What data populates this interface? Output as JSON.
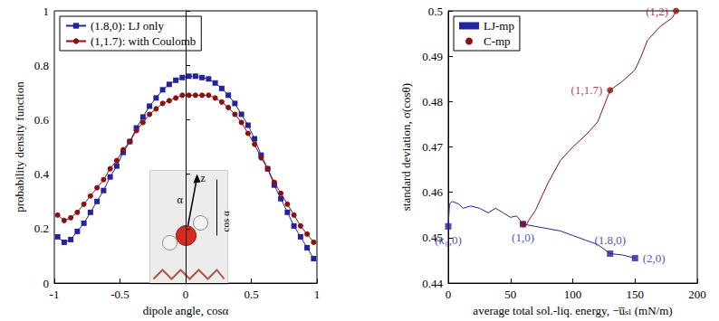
{
  "chart_data": [
    {
      "type": "line",
      "xlabel": "dipole angle, cosα",
      "ylabel": "probability density function",
      "xlim": [
        -1,
        1
      ],
      "xticks": [
        -1,
        -0.5,
        0,
        0.5,
        1
      ],
      "ylim": [
        0,
        1
      ],
      "yticks": [
        0,
        0.2,
        0.4,
        0.6,
        0.8,
        1
      ],
      "grid": false,
      "legend": "upper left",
      "annotations": [
        "z",
        "α",
        "cos α"
      ],
      "x": [
        -0.975,
        -0.925,
        -0.875,
        -0.825,
        -0.775,
        -0.725,
        -0.675,
        -0.625,
        -0.575,
        -0.525,
        -0.475,
        -0.425,
        -0.375,
        -0.325,
        -0.275,
        -0.225,
        -0.175,
        -0.125,
        -0.075,
        -0.025,
        0.025,
        0.075,
        0.125,
        0.175,
        0.225,
        0.275,
        0.325,
        0.375,
        0.425,
        0.475,
        0.525,
        0.575,
        0.625,
        0.675,
        0.725,
        0.775,
        0.825,
        0.875,
        0.925,
        0.975
      ],
      "series": [
        {
          "name": "(1.8,0): LJ only",
          "color": "#23239b",
          "marker": "square",
          "values": [
            0.17,
            0.15,
            0.16,
            0.19,
            0.22,
            0.26,
            0.3,
            0.34,
            0.39,
            0.43,
            0.48,
            0.52,
            0.57,
            0.61,
            0.65,
            0.68,
            0.71,
            0.73,
            0.745,
            0.755,
            0.76,
            0.76,
            0.755,
            0.75,
            0.735,
            0.715,
            0.69,
            0.66,
            0.62,
            0.58,
            0.53,
            0.47,
            0.42,
            0.36,
            0.31,
            0.26,
            0.21,
            0.17,
            0.13,
            0.09
          ]
        },
        {
          "name": "(1,1.7): with Coulomb",
          "color": "#8b1010",
          "marker": "circle",
          "values": [
            0.25,
            0.23,
            0.24,
            0.26,
            0.29,
            0.32,
            0.35,
            0.38,
            0.42,
            0.45,
            0.49,
            0.52,
            0.56,
            0.59,
            0.62,
            0.64,
            0.66,
            0.67,
            0.68,
            0.69,
            0.69,
            0.69,
            0.69,
            0.69,
            0.68,
            0.665,
            0.645,
            0.62,
            0.59,
            0.55,
            0.51,
            0.46,
            0.42,
            0.37,
            0.33,
            0.29,
            0.25,
            0.21,
            0.18,
            0.15
          ]
        }
      ]
    },
    {
      "type": "line",
      "xlabel": "average total sol.-liq. energy, −u̅ₛₗ (mN/m)",
      "ylabel": "standard deviation, σ(cosθ)",
      "xlim": [
        0,
        200
      ],
      "xticks": [
        0,
        50,
        100,
        150,
        200
      ],
      "ylim": [
        0.44,
        0.5
      ],
      "yticks": [
        0.44,
        0.45,
        0.46,
        0.47,
        0.48,
        0.49,
        0.5
      ],
      "grid": false,
      "legend": "upper left",
      "series": [
        {
          "name": "LJ-mp",
          "color": "#23239b",
          "marker": "square",
          "x": [
            0,
            1,
            3,
            8,
            12,
            18,
            25,
            32,
            38,
            44,
            50,
            55,
            60,
            70,
            80,
            90,
            100,
            110,
            120,
            130,
            140,
            150
          ],
          "values": [
            0.4525,
            0.4575,
            0.458,
            0.4575,
            0.4565,
            0.457,
            0.4565,
            0.4555,
            0.4565,
            0.4555,
            0.4545,
            0.4548,
            0.453,
            0.4525,
            0.452,
            0.4515,
            0.4505,
            0.4495,
            0.4485,
            0.4465,
            0.4462,
            0.4455
          ],
          "points": [
            {
              "x": 0,
              "y": 0.4525,
              "label": "(κ₀,0)"
            },
            {
              "x": 60,
              "y": 0.453,
              "label": "(1,0)"
            },
            {
              "x": 130,
              "y": 0.4465,
              "label": "(1.8,0)"
            },
            {
              "x": 150,
              "y": 0.4455,
              "label": "(2,0)"
            }
          ]
        },
        {
          "name": "C-mp",
          "color": "#8b1010",
          "marker": "circle",
          "x": [
            60,
            62,
            65,
            70,
            75,
            80,
            90,
            100,
            110,
            120,
            125,
            130,
            140,
            150,
            155,
            160,
            170,
            180,
            183
          ],
          "values": [
            0.453,
            0.4525,
            0.454,
            0.456,
            0.459,
            0.462,
            0.467,
            0.47,
            0.4725,
            0.4755,
            0.479,
            0.4825,
            0.4845,
            0.487,
            0.49,
            0.4935,
            0.4965,
            0.4985,
            0.5
          ],
          "points": [
            {
              "x": 60,
              "y": 0.453
            },
            {
              "x": 130,
              "y": 0.4825,
              "label": "(1,1.7)"
            },
            {
              "x": 183,
              "y": 0.5,
              "label": "(1,2)"
            }
          ]
        }
      ]
    }
  ]
}
